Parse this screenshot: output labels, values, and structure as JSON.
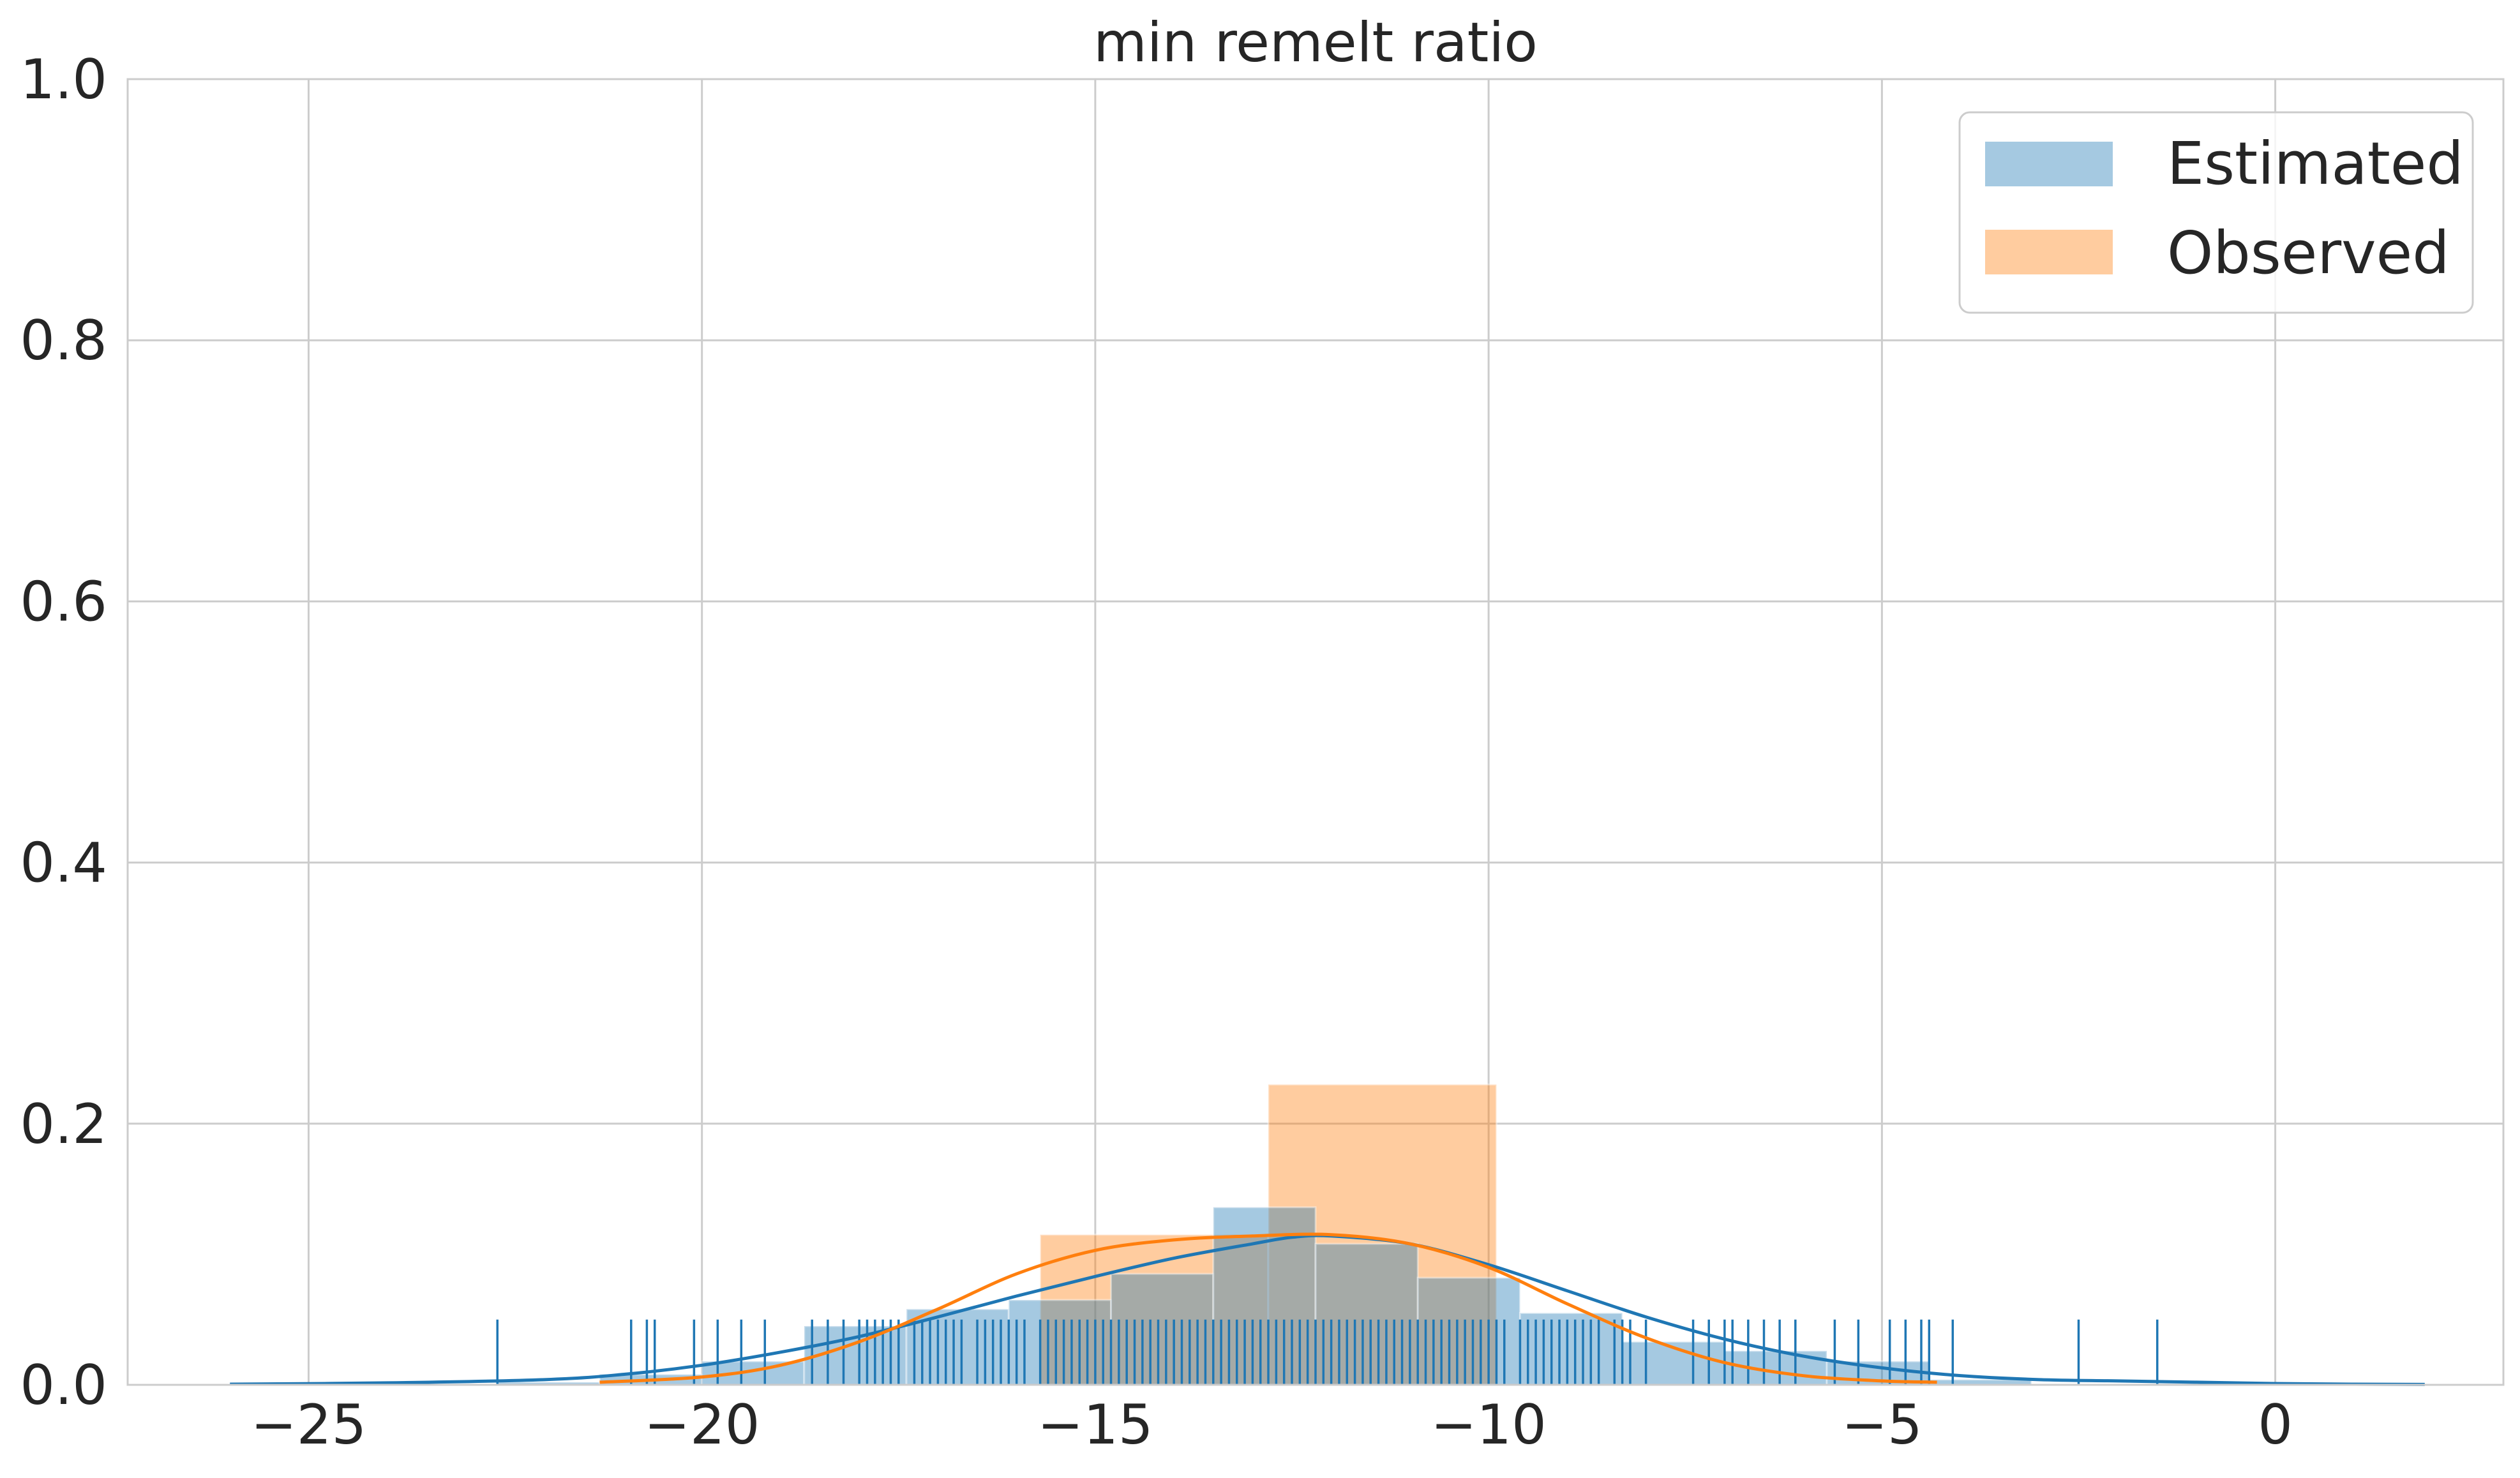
{
  "chart_data": {
    "type": "histogram",
    "title": "min remelt ratio",
    "xlabel": "",
    "ylabel": "",
    "xlim": [
      -27.3,
      2.9
    ],
    "ylim": [
      0,
      1.0
    ],
    "x_ticks": [
      -25,
      -20,
      -15,
      -10,
      -5,
      0
    ],
    "x_tick_labels": [
      "−25",
      "−20",
      "−15",
      "−10",
      "−5",
      "0"
    ],
    "y_ticks": [
      0.0,
      0.2,
      0.4,
      0.6,
      0.8,
      1.0
    ],
    "y_tick_labels": [
      "0.0",
      "0.2",
      "0.4",
      "0.6",
      "0.8",
      "1.0"
    ],
    "grid": true,
    "legend_position": "top-right",
    "colors": {
      "estimated": "#1f77b4",
      "observed": "#ff7f0e",
      "grid": "#cccccc",
      "text": "#262626"
    },
    "series": [
      {
        "name": "Estimated",
        "key": "estimated",
        "histogram_bins": [
          {
            "x0": -22.6,
            "x1": -21.3,
            "density": 0.002
          },
          {
            "x0": -21.3,
            "x1": -20.0,
            "density": 0.008
          },
          {
            "x0": -20.0,
            "x1": -18.7,
            "density": 0.018
          },
          {
            "x0": -18.7,
            "x1": -17.4,
            "density": 0.045
          },
          {
            "x0": -17.4,
            "x1": -16.1,
            "density": 0.058
          },
          {
            "x0": -16.1,
            "x1": -14.8,
            "density": 0.065
          },
          {
            "x0": -14.8,
            "x1": -13.5,
            "density": 0.085
          },
          {
            "x0": -13.5,
            "x1": -12.2,
            "density": 0.136
          },
          {
            "x0": -12.2,
            "x1": -10.9,
            "density": 0.108
          },
          {
            "x0": -10.9,
            "x1": -9.6,
            "density": 0.082
          },
          {
            "x0": -9.6,
            "x1": -8.3,
            "density": 0.055
          },
          {
            "x0": -8.3,
            "x1": -7.0,
            "density": 0.033
          },
          {
            "x0": -7.0,
            "x1": -5.7,
            "density": 0.026
          },
          {
            "x0": -5.7,
            "x1": -4.4,
            "density": 0.018
          },
          {
            "x0": -4.4,
            "x1": -3.1,
            "density": 0.004
          }
        ],
        "kde": {
          "x": [
            -26.0,
            -24.0,
            -22.0,
            -21.0,
            -20.0,
            -19.0,
            -18.0,
            -17.0,
            -16.0,
            -15.0,
            -14.0,
            -13.0,
            -12.5,
            -12.0,
            -11.0,
            -10.0,
            -9.0,
            -8.0,
            -7.0,
            -6.0,
            -5.0,
            -4.0,
            -3.0,
            -2.0,
            -1.0,
            0.0,
            1.0,
            1.9
          ],
          "y": [
            0.0005,
            0.0015,
            0.004,
            0.008,
            0.015,
            0.025,
            0.037,
            0.052,
            0.068,
            0.083,
            0.097,
            0.108,
            0.113,
            0.114,
            0.108,
            0.092,
            0.072,
            0.052,
            0.035,
            0.022,
            0.013,
            0.007,
            0.004,
            0.003,
            0.002,
            0.001,
            0.0005,
            0.0003
          ]
        },
        "rug": [
          -22.6,
          -20.9,
          -20.7,
          -20.6,
          -20.1,
          -19.8,
          -19.5,
          -19.2,
          -18.6,
          -18.4,
          -18.2,
          -18.0,
          -17.9,
          -17.8,
          -17.7,
          -17.6,
          -17.5,
          -17.3,
          -17.2,
          -17.1,
          -17.0,
          -16.9,
          -16.8,
          -16.7,
          -16.5,
          -16.4,
          -16.3,
          -16.2,
          -16.1,
          -16.0,
          -15.9,
          -15.7,
          -15.6,
          -15.5,
          -15.4,
          -15.3,
          -15.2,
          -15.1,
          -15.0,
          -14.9,
          -14.8,
          -14.7,
          -14.6,
          -14.5,
          -14.4,
          -14.3,
          -14.2,
          -14.1,
          -14.0,
          -13.9,
          -13.8,
          -13.7,
          -13.6,
          -13.5,
          -13.4,
          -13.3,
          -13.2,
          -13.1,
          -13.0,
          -12.9,
          -12.8,
          -12.7,
          -12.6,
          -12.5,
          -12.4,
          -12.3,
          -12.2,
          -12.1,
          -12.0,
          -11.9,
          -11.8,
          -11.7,
          -11.6,
          -11.5,
          -11.4,
          -11.3,
          -11.2,
          -11.1,
          -11.0,
          -10.9,
          -10.8,
          -10.7,
          -10.6,
          -10.5,
          -10.4,
          -10.3,
          -10.2,
          -10.1,
          -10.0,
          -9.9,
          -9.8,
          -9.6,
          -9.5,
          -9.4,
          -9.3,
          -9.2,
          -9.1,
          -9.0,
          -8.9,
          -8.8,
          -8.7,
          -8.6,
          -8.4,
          -8.3,
          -8.2,
          -8.0,
          -7.4,
          -7.2,
          -7.0,
          -6.9,
          -6.7,
          -6.5,
          -6.3,
          -6.1,
          -5.6,
          -5.3,
          -4.9,
          -4.7,
          -4.5,
          -4.4,
          -4.1,
          -2.5,
          -1.5
        ]
      },
      {
        "name": "Observed",
        "key": "observed",
        "histogram_bins": [
          {
            "x0": -15.7,
            "x1": -12.8,
            "density": 0.115
          },
          {
            "x0": -12.8,
            "x1": -9.9,
            "density": 0.23
          }
        ],
        "kde": {
          "x": [
            -21.3,
            -20.0,
            -19.0,
            -18.0,
            -17.0,
            -16.0,
            -15.0,
            -14.0,
            -13.0,
            -12.0,
            -11.0,
            -10.0,
            -9.0,
            -8.0,
            -7.0,
            -6.0,
            -5.0,
            -4.3
          ],
          "y": [
            0.002,
            0.006,
            0.015,
            0.033,
            0.058,
            0.085,
            0.103,
            0.111,
            0.114,
            0.115,
            0.108,
            0.09,
            0.062,
            0.036,
            0.017,
            0.007,
            0.003,
            0.002
          ]
        }
      }
    ]
  }
}
